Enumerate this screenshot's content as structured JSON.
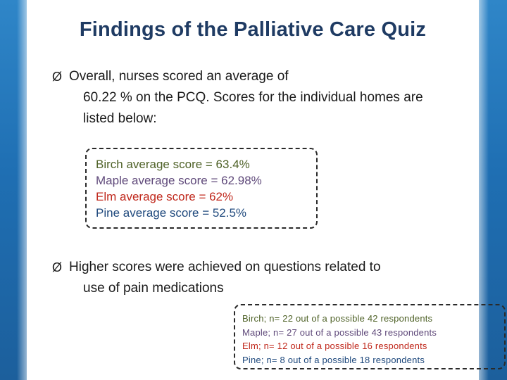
{
  "slide": {
    "title": "Findings of the Palliative Care Quiz",
    "bullet1": {
      "line1": "Overall, nurses scored an average of",
      "line2": "60.22 % on the PCQ. Scores for the individual homes are",
      "line3": "listed below:"
    },
    "scores": [
      {
        "text": "Birch average score = 63.4%",
        "color": "#4f6228"
      },
      {
        "text": "Maple average score = 62.98%",
        "color": "#5f497a"
      },
      {
        "text": "Elm average score = 62%",
        "color": "#c0281c"
      },
      {
        "text": "Pine average score = 52.5%",
        "color": "#1f497d"
      }
    ],
    "bullet2": {
      "line1": "Higher scores were achieved on questions related to",
      "line2": "use of pain medications"
    },
    "respondents": [
      {
        "text": "Birch; n= 22 out of a possible 42 respondents",
        "color": "#4f6228"
      },
      {
        "text": "Maple;  n= 27 out of a possible 43 respondents",
        "color": "#5f497a"
      },
      {
        "text": "Elm; n= 12 out of a possible 16 respondents",
        "color": "#c0281c"
      },
      {
        "text": "Pine; n= 8 out of a possible 18 respondents",
        "color": "#1f497d"
      }
    ],
    "bullet_glyph": "Ø",
    "colors": {
      "title": "#1f3b63",
      "band": "#1f6fb3"
    }
  }
}
